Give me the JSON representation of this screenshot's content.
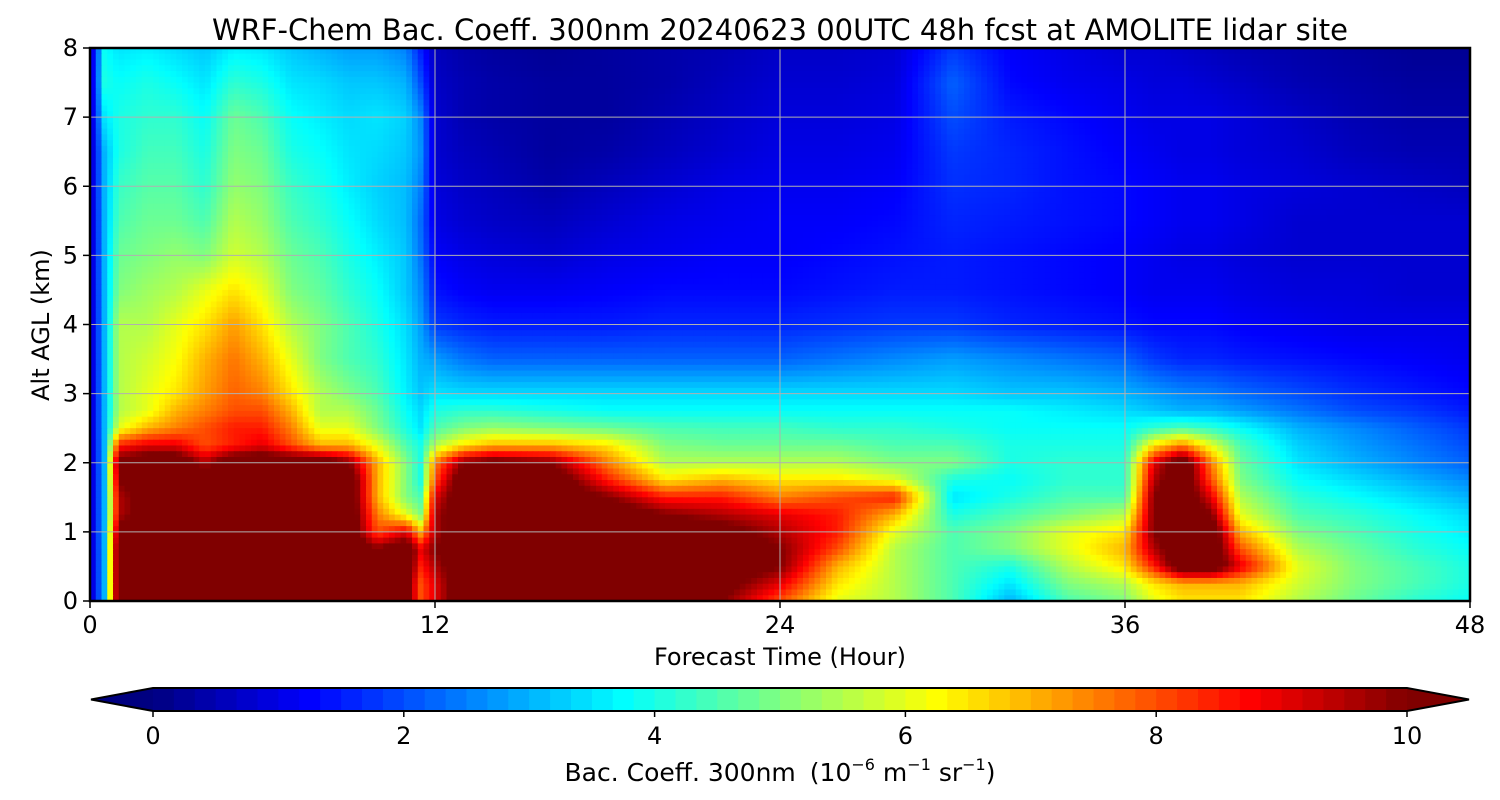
{
  "chart_data": {
    "type": "heatmap",
    "title": "WRF-Chem Bac. Coeff. 300nm  20240623 00UTC 48h fcst at AMOLITE lidar site",
    "xlabel": "Forecast Time (Hour)",
    "ylabel": "Alt AGL (km)",
    "xlim": [
      0,
      48
    ],
    "ylim": [
      0,
      8
    ],
    "xticks": [
      0,
      12,
      24,
      36,
      48
    ],
    "yticks": [
      0,
      1,
      2,
      3,
      4,
      5,
      6,
      7,
      8
    ],
    "grid": true,
    "colormap": "jet",
    "colorbar": {
      "orientation": "horizontal",
      "label": "Bac. Coeff. 300nm",
      "units_prefix": "(10",
      "units_exp1": "−6",
      "units_mid": " m",
      "units_exp2": "−1",
      "units_mid2": " sr",
      "units_exp3": "−1",
      "units_suffix": ")",
      "range": [
        0,
        10
      ],
      "ticks": [
        0,
        2,
        4,
        6,
        8,
        10
      ],
      "extend": "both"
    },
    "x": [
      0,
      0.5,
      1,
      2,
      3,
      4,
      5,
      6,
      7,
      8,
      9,
      10,
      11,
      11.5,
      12,
      13,
      14,
      16,
      18,
      20,
      22,
      24,
      26,
      28,
      30,
      32,
      34,
      36,
      37,
      38,
      39,
      40,
      42,
      44,
      46,
      48
    ],
    "y": [
      0,
      0.25,
      0.5,
      0.75,
      1,
      1.25,
      1.5,
      1.75,
      2,
      2.25,
      2.5,
      2.75,
      3,
      3.5,
      4,
      4.5,
      5,
      5.5,
      6,
      6.5,
      7,
      7.5,
      8
    ],
    "z": [
      [
        0.5,
        3.0,
        11.0,
        11.0,
        11.0,
        11.0,
        11.0,
        11.0,
        11.0,
        11.0,
        11.0,
        11.0,
        10.5,
        8.0,
        9.0,
        11.0,
        11.0,
        11.0,
        11.0,
        10.0,
        10.0,
        8.0,
        6.0,
        5.5,
        4.5,
        3.0,
        4.5,
        5.0,
        6.0,
        6.5,
        6.5,
        6.5,
        5.5,
        4.8,
        4.2,
        3.8
      ],
      [
        0.5,
        3.0,
        11.0,
        11.0,
        11.0,
        11.0,
        11.0,
        11.0,
        11.0,
        11.0,
        11.0,
        11.0,
        10.5,
        8.0,
        9.0,
        11.0,
        11.0,
        11.0,
        11.0,
        11.0,
        10.5,
        9.0,
        6.5,
        5.5,
        4.5,
        3.5,
        5.0,
        5.5,
        6.5,
        7.0,
        7.0,
        7.0,
        5.8,
        5.0,
        4.5,
        4.0
      ],
      [
        0.5,
        3.0,
        11.0,
        11.0,
        11.0,
        11.0,
        11.0,
        11.0,
        11.0,
        11.0,
        11.0,
        11.0,
        11.0,
        8.5,
        9.5,
        11.0,
        11.0,
        11.0,
        11.0,
        11.0,
        11.0,
        10.0,
        7.0,
        5.5,
        4.5,
        4.0,
        5.5,
        6.5,
        8.5,
        11.0,
        11.0,
        9.0,
        6.0,
        5.0,
        4.5,
        4.0
      ],
      [
        0.5,
        3.0,
        11.0,
        11.0,
        11.0,
        11.0,
        11.0,
        11.0,
        11.0,
        11.0,
        11.0,
        10.0,
        11.0,
        9.0,
        10.0,
        11.0,
        11.0,
        11.0,
        11.0,
        11.0,
        11.0,
        10.0,
        8.0,
        5.5,
        4.5,
        5.0,
        6.0,
        7.0,
        9.5,
        11.0,
        11.0,
        8.0,
        5.5,
        4.8,
        4.2,
        3.8
      ],
      [
        0.5,
        3.0,
        10.5,
        11.0,
        11.0,
        11.0,
        11.0,
        11.0,
        11.0,
        11.0,
        11.0,
        8.0,
        9.0,
        7.0,
        9.5,
        11.0,
        11.0,
        11.0,
        11.0,
        11.0,
        10.5,
        9.5,
        8.5,
        6.0,
        4.5,
        5.0,
        6.0,
        6.5,
        10.0,
        11.0,
        11.0,
        7.0,
        5.0,
        4.5,
        4.0,
        3.6
      ],
      [
        0.5,
        3.0,
        9.5,
        10.5,
        11.0,
        11.0,
        11.0,
        11.0,
        11.0,
        11.0,
        11.0,
        7.5,
        6.0,
        5.0,
        9.5,
        11.0,
        11.0,
        11.0,
        11.0,
        10.0,
        9.5,
        9.0,
        8.5,
        7.0,
        4.0,
        4.5,
        5.0,
        5.5,
        10.0,
        11.0,
        10.0,
        6.0,
        4.5,
        4.2,
        3.8,
        3.4
      ],
      [
        0.5,
        3.0,
        9.5,
        10.5,
        11.0,
        11.0,
        11.0,
        11.0,
        11.0,
        11.0,
        11.0,
        7.0,
        5.0,
        4.5,
        9.0,
        11.0,
        11.0,
        11.0,
        10.0,
        8.5,
        8.5,
        7.5,
        8.0,
        8.5,
        3.5,
        4.0,
        4.5,
        4.5,
        10.0,
        11.0,
        9.0,
        5.5,
        4.2,
        3.8,
        3.4,
        3.0
      ],
      [
        0.5,
        3.0,
        10.0,
        11.0,
        11.0,
        11.0,
        11.0,
        11.0,
        11.0,
        11.0,
        11.0,
        7.0,
        5.0,
        4.0,
        8.0,
        11.0,
        11.0,
        11.0,
        8.5,
        6.5,
        7.0,
        6.5,
        6.5,
        6.0,
        4.0,
        3.8,
        4.2,
        4.2,
        9.5,
        11.0,
        8.0,
        5.0,
        3.8,
        3.4,
        3.0,
        2.6
      ],
      [
        0.5,
        3.0,
        10.5,
        11.0,
        11.0,
        9.5,
        11.0,
        11.0,
        11.0,
        11.0,
        10.0,
        7.0,
        5.0,
        4.0,
        7.5,
        10.0,
        10.5,
        10.0,
        7.5,
        5.5,
        5.5,
        5.5,
        5.5,
        5.0,
        5.0,
        4.0,
        4.2,
        4.2,
        9.0,
        11.0,
        7.5,
        4.8,
        3.5,
        3.0,
        2.6,
        2.2
      ],
      [
        0.5,
        3.0,
        8.5,
        9.0,
        9.0,
        8.0,
        8.5,
        9.0,
        8.0,
        7.0,
        7.0,
        6.0,
        4.5,
        4.0,
        5.5,
        6.5,
        7.0,
        7.0,
        6.5,
        5.0,
        4.8,
        4.8,
        4.8,
        4.5,
        4.5,
        4.0,
        4.0,
        4.0,
        6.5,
        7.5,
        6.0,
        4.5,
        3.3,
        2.8,
        2.4,
        2.0
      ],
      [
        0.5,
        3.0,
        6.0,
        7.0,
        7.5,
        8.0,
        8.5,
        8.5,
        7.5,
        6.0,
        6.0,
        5.0,
        4.0,
        3.5,
        4.5,
        5.0,
        5.2,
        5.0,
        4.8,
        4.5,
        4.4,
        4.4,
        4.2,
        4.2,
        4.0,
        3.8,
        3.8,
        3.8,
        4.2,
        4.5,
        4.2,
        3.8,
        3.0,
        2.6,
        2.2,
        1.8
      ],
      [
        0.5,
        3.0,
        5.5,
        6.0,
        7.0,
        7.5,
        8.0,
        8.0,
        7.0,
        5.5,
        5.5,
        4.8,
        3.8,
        3.4,
        4.0,
        4.2,
        4.2,
        4.0,
        3.8,
        3.8,
        3.8,
        3.8,
        3.8,
        3.8,
        3.8,
        3.8,
        3.6,
        3.4,
        3.2,
        3.0,
        3.0,
        2.8,
        2.4,
        2.0,
        1.8,
        1.5
      ],
      [
        0.5,
        3.0,
        5.5,
        6.0,
        6.5,
        7.2,
        7.8,
        7.5,
        6.5,
        5.5,
        5.0,
        4.5,
        3.6,
        3.2,
        3.5,
        3.4,
        3.4,
        3.4,
        3.4,
        3.4,
        3.4,
        3.4,
        3.4,
        3.4,
        3.4,
        3.2,
        3.2,
        3.0,
        2.8,
        2.6,
        2.5,
        2.3,
        2.0,
        1.7,
        1.5,
        1.3
      ],
      [
        0.5,
        3.0,
        5.5,
        5.8,
        6.2,
        7.0,
        7.6,
        7.0,
        6.0,
        5.0,
        4.5,
        4.2,
        3.5,
        3.0,
        2.8,
        2.4,
        2.2,
        2.2,
        2.2,
        2.2,
        2.2,
        2.2,
        2.4,
        2.6,
        2.8,
        2.6,
        2.4,
        2.2,
        1.8,
        1.6,
        1.6,
        1.5,
        1.4,
        1.3,
        1.2,
        1.1
      ],
      [
        0.5,
        3.0,
        5.5,
        5.5,
        6.0,
        6.5,
        7.2,
        6.5,
        5.5,
        5.0,
        4.5,
        4.0,
        3.4,
        2.8,
        1.8,
        1.6,
        1.5,
        1.5,
        1.5,
        1.6,
        1.6,
        1.6,
        1.7,
        1.8,
        1.8,
        1.6,
        1.5,
        1.4,
        1.3,
        1.3,
        1.3,
        1.2,
        1.1,
        1.0,
        1.0,
        1.0
      ],
      [
        0.5,
        3.0,
        5.0,
        5.3,
        5.5,
        6.0,
        6.5,
        6.0,
        5.0,
        4.7,
        4.2,
        3.8,
        3.2,
        2.6,
        1.4,
        1.2,
        1.1,
        1.1,
        1.2,
        1.3,
        1.3,
        1.3,
        1.4,
        1.5,
        1.5,
        1.4,
        1.3,
        1.2,
        1.1,
        1.1,
        1.1,
        1.0,
        0.9,
        0.9,
        0.8,
        0.8
      ],
      [
        0.5,
        3.0,
        4.8,
        5.0,
        5.2,
        5.0,
        5.8,
        5.5,
        4.8,
        4.5,
        4.0,
        3.6,
        3.2,
        2.4,
        1.2,
        1.0,
        0.9,
        0.8,
        1.0,
        1.1,
        1.2,
        1.2,
        1.3,
        1.4,
        1.5,
        1.4,
        1.3,
        1.2,
        1.1,
        1.0,
        1.0,
        0.9,
        0.8,
        0.8,
        0.8,
        0.8
      ],
      [
        0.5,
        3.0,
        4.5,
        4.8,
        4.8,
        4.5,
        5.5,
        5.2,
        4.5,
        4.2,
        3.8,
        3.4,
        3.1,
        2.3,
        1.0,
        0.8,
        0.7,
        0.6,
        0.8,
        1.0,
        1.1,
        1.2,
        1.2,
        1.3,
        1.6,
        1.5,
        1.4,
        1.3,
        1.2,
        1.1,
        1.1,
        1.0,
        0.8,
        0.8,
        0.8,
        0.8
      ],
      [
        0.5,
        3.0,
        4.3,
        4.6,
        4.6,
        4.2,
        5.2,
        5.0,
        4.3,
        4.0,
        3.6,
        3.3,
        3.1,
        2.5,
        0.9,
        0.7,
        0.6,
        0.4,
        0.6,
        0.8,
        1.0,
        1.1,
        1.1,
        1.2,
        1.7,
        1.6,
        1.4,
        1.3,
        1.2,
        1.1,
        1.1,
        1.0,
        0.9,
        0.8,
        0.7,
        0.6
      ],
      [
        0.5,
        3.0,
        4.0,
        4.4,
        4.4,
        4.0,
        5.0,
        4.8,
        4.0,
        3.8,
        3.5,
        3.4,
        3.2,
        2.7,
        0.8,
        0.6,
        0.5,
        0.3,
        0.4,
        0.6,
        0.8,
        1.0,
        1.0,
        1.1,
        1.8,
        1.6,
        1.4,
        1.2,
        1.1,
        1.0,
        1.0,
        0.9,
        0.8,
        0.6,
        0.5,
        0.5
      ],
      [
        0.5,
        3.5,
        4.0,
        4.2,
        4.2,
        3.8,
        4.8,
        4.5,
        3.8,
        3.6,
        3.4,
        3.5,
        3.3,
        2.6,
        0.8,
        0.5,
        0.4,
        0.3,
        0.3,
        0.5,
        0.7,
        0.9,
        0.9,
        1.0,
        2.0,
        1.5,
        1.3,
        1.1,
        1.0,
        1.0,
        1.0,
        0.9,
        0.7,
        0.5,
        0.4,
        0.4
      ],
      [
        0.5,
        4.0,
        3.8,
        4.0,
        3.8,
        3.5,
        4.2,
        4.0,
        3.5,
        3.4,
        3.2,
        3.2,
        3.0,
        2.0,
        0.7,
        0.5,
        0.4,
        0.3,
        0.3,
        0.4,
        0.6,
        0.8,
        0.8,
        0.9,
        2.2,
        1.3,
        1.1,
        1.0,
        0.9,
        0.9,
        0.8,
        0.7,
        0.5,
        0.4,
        0.3,
        0.3
      ],
      [
        0.5,
        3.8,
        3.5,
        3.6,
        3.4,
        3.2,
        3.6,
        3.5,
        3.2,
        3.0,
        2.8,
        2.8,
        2.5,
        1.5,
        0.6,
        0.4,
        0.3,
        0.2,
        0.3,
        0.4,
        0.5,
        0.7,
        0.7,
        0.8,
        1.8,
        1.2,
        1.0,
        0.8,
        0.8,
        0.7,
        0.6,
        0.5,
        0.4,
        0.3,
        0.2,
        0.2
      ]
    ]
  }
}
